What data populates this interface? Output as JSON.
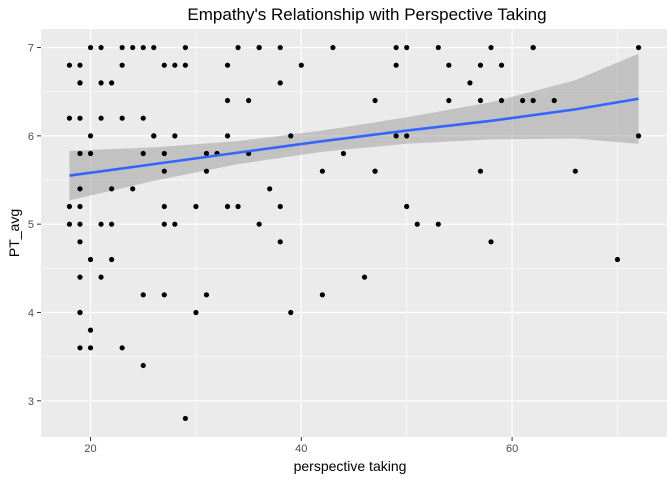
{
  "chart_data": {
    "type": "scatter",
    "title": "Empathy's Relationship with Perspective Taking",
    "xlabel": "perspective taking",
    "ylabel": "PT_avg",
    "xlim": [
      15.3,
      74.7
    ],
    "ylim": [
      2.59,
      7.21
    ],
    "x_ticks": [
      20,
      40,
      60
    ],
    "y_ticks": [
      3,
      4,
      5,
      6,
      7
    ],
    "x_tick_labels": [
      "20",
      "40",
      "60"
    ],
    "y_tick_labels": [
      "3",
      "4",
      "5",
      "6",
      "7"
    ],
    "grid": true,
    "panel_background": "#ebebeb",
    "point_color": "#000000",
    "trend": {
      "method": "linear fit with confidence band",
      "color": "#3366ff",
      "band_color": "#999999",
      "x": [
        18,
        26,
        34,
        42,
        50,
        58,
        66,
        72
      ],
      "y": [
        5.55,
        5.68,
        5.81,
        5.94,
        6.06,
        6.17,
        6.3,
        6.42
      ],
      "lower": [
        5.27,
        5.49,
        5.68,
        5.82,
        5.91,
        5.96,
        5.97,
        5.91
      ],
      "upper": [
        5.83,
        5.87,
        5.94,
        6.06,
        6.21,
        6.38,
        6.63,
        6.93
      ]
    },
    "points": [
      [
        18,
        6.8
      ],
      [
        18,
        6.2
      ],
      [
        18,
        5.2
      ],
      [
        18,
        5.0
      ],
      [
        19,
        6.8
      ],
      [
        19,
        6.6
      ],
      [
        19,
        6.6
      ],
      [
        19,
        6.2
      ],
      [
        19,
        5.8
      ],
      [
        19,
        5.4
      ],
      [
        19,
        5.2
      ],
      [
        19,
        5.0
      ],
      [
        19,
        4.8
      ],
      [
        19,
        4.4
      ],
      [
        19,
        4.0
      ],
      [
        19,
        4.0
      ],
      [
        19,
        3.6
      ],
      [
        20,
        7.0
      ],
      [
        20,
        6.0
      ],
      [
        20,
        5.8
      ],
      [
        20,
        4.6
      ],
      [
        20,
        3.8
      ],
      [
        20,
        3.6
      ],
      [
        21,
        7.0
      ],
      [
        21,
        6.6
      ],
      [
        21,
        6.2
      ],
      [
        21,
        5.0
      ],
      [
        21,
        4.4
      ],
      [
        22,
        6.6
      ],
      [
        22,
        5.4
      ],
      [
        22,
        5.0
      ],
      [
        22,
        4.6
      ],
      [
        23,
        7.0
      ],
      [
        23,
        6.8
      ],
      [
        23,
        6.2
      ],
      [
        23,
        3.6
      ],
      [
        24,
        7.0
      ],
      [
        24,
        5.4
      ],
      [
        25,
        7.0
      ],
      [
        25,
        6.2
      ],
      [
        25,
        5.8
      ],
      [
        25,
        4.2
      ],
      [
        25,
        3.4
      ],
      [
        26,
        7.0
      ],
      [
        26,
        6.0
      ],
      [
        26,
        6.0
      ],
      [
        27,
        6.8
      ],
      [
        27,
        5.8
      ],
      [
        27,
        5.6
      ],
      [
        27,
        5.2
      ],
      [
        27,
        5.0
      ],
      [
        27,
        4.2
      ],
      [
        28,
        6.8
      ],
      [
        28,
        6.0
      ],
      [
        28,
        5.0
      ],
      [
        29,
        7.0
      ],
      [
        29,
        6.8
      ],
      [
        29,
        2.8
      ],
      [
        30,
        5.2
      ],
      [
        30,
        4.0
      ],
      [
        31,
        5.8
      ],
      [
        31,
        5.6
      ],
      [
        31,
        4.2
      ],
      [
        32,
        5.8
      ],
      [
        33,
        6.8
      ],
      [
        33,
        6.4
      ],
      [
        33,
        6.0
      ],
      [
        33,
        5.2
      ],
      [
        34,
        7.0
      ],
      [
        34,
        5.2
      ],
      [
        35,
        6.4
      ],
      [
        35,
        5.8
      ],
      [
        36,
        7.0
      ],
      [
        36,
        7.0
      ],
      [
        36,
        5.0
      ],
      [
        37,
        5.4
      ],
      [
        38,
        7.0
      ],
      [
        38,
        6.6
      ],
      [
        38,
        5.2
      ],
      [
        38,
        4.8
      ],
      [
        39,
        6.0
      ],
      [
        39,
        4.0
      ],
      [
        40,
        6.8
      ],
      [
        42,
        5.6
      ],
      [
        42,
        4.2
      ],
      [
        43,
        7.0
      ],
      [
        44,
        5.8
      ],
      [
        46,
        4.4
      ],
      [
        47,
        6.4
      ],
      [
        47,
        5.6
      ],
      [
        47,
        5.6
      ],
      [
        49,
        7.0
      ],
      [
        49,
        6.8
      ],
      [
        49,
        6.0
      ],
      [
        50,
        7.0
      ],
      [
        50,
        6.0
      ],
      [
        50,
        5.2
      ],
      [
        51,
        5.0
      ],
      [
        53,
        7.0
      ],
      [
        53,
        5.0
      ],
      [
        54,
        6.8
      ],
      [
        54,
        6.4
      ],
      [
        56,
        6.6
      ],
      [
        57,
        6.8
      ],
      [
        57,
        6.4
      ],
      [
        57,
        5.6
      ],
      [
        58,
        7.0
      ],
      [
        58,
        4.8
      ],
      [
        59,
        6.8
      ],
      [
        59,
        6.4
      ],
      [
        61,
        6.4
      ],
      [
        62,
        7.0
      ],
      [
        62,
        7.0
      ],
      [
        62,
        6.4
      ],
      [
        64,
        6.4
      ],
      [
        66,
        5.6
      ],
      [
        70,
        4.6
      ],
      [
        72,
        7.0
      ],
      [
        72,
        6.0
      ]
    ]
  }
}
